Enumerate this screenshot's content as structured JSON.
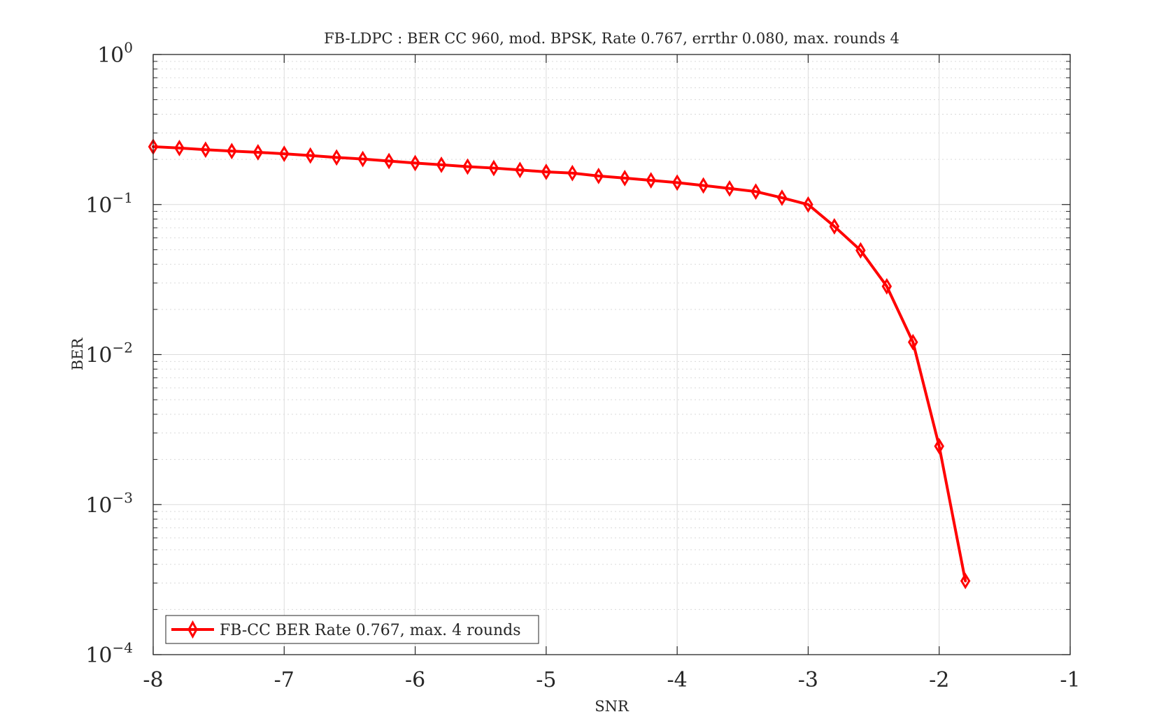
{
  "chart_data": {
    "type": "line",
    "title": "FB-LDPC : BER CC 960, mod. BPSK, Rate 0.767, errthr 0.080, max. rounds 4",
    "xlabel": "SNR",
    "ylabel": "BER",
    "xlim": [
      -8,
      -1
    ],
    "ylim": [
      0.0001,
      1
    ],
    "yscale": "log",
    "grid": true,
    "minor_grid": true,
    "legend_position": "bottom-left",
    "x_ticks": [
      "-8",
      "-7",
      "-6",
      "-5",
      "-4",
      "-3",
      "-2",
      "-1"
    ],
    "y_ticks": [
      {
        "base": "10",
        "exp": "0"
      },
      {
        "base": "10",
        "exp": "−1"
      },
      {
        "base": "10",
        "exp": "−2"
      },
      {
        "base": "10",
        "exp": "−3"
      },
      {
        "base": "10",
        "exp": "−4"
      }
    ],
    "series": [
      {
        "name": "FB-CC BER Rate 0.767, max. 4 rounds",
        "color": "#ff0000",
        "marker": "diamond",
        "x": [
          -8.0,
          -7.8,
          -7.6,
          -7.4,
          -7.2,
          -7.0,
          -6.8,
          -6.6,
          -6.4,
          -6.2,
          -6.0,
          -5.8,
          -5.6,
          -5.4,
          -5.2,
          -5.0,
          -4.8,
          -4.6,
          -4.4,
          -4.2,
          -4.0,
          -3.8,
          -3.6,
          -3.4,
          -3.2,
          -3.0,
          -2.8,
          -2.6,
          -2.4,
          -2.2,
          -2.0,
          -1.8
        ],
        "y": [
          0.243,
          0.238,
          0.232,
          0.227,
          0.223,
          0.218,
          0.212,
          0.206,
          0.201,
          0.195,
          0.189,
          0.184,
          0.179,
          0.175,
          0.17,
          0.165,
          0.162,
          0.155,
          0.15,
          0.145,
          0.14,
          0.134,
          0.128,
          0.122,
          0.111,
          0.1,
          0.0715,
          0.0495,
          0.0285,
          0.0121,
          0.00245,
          0.00031
        ]
      }
    ]
  }
}
